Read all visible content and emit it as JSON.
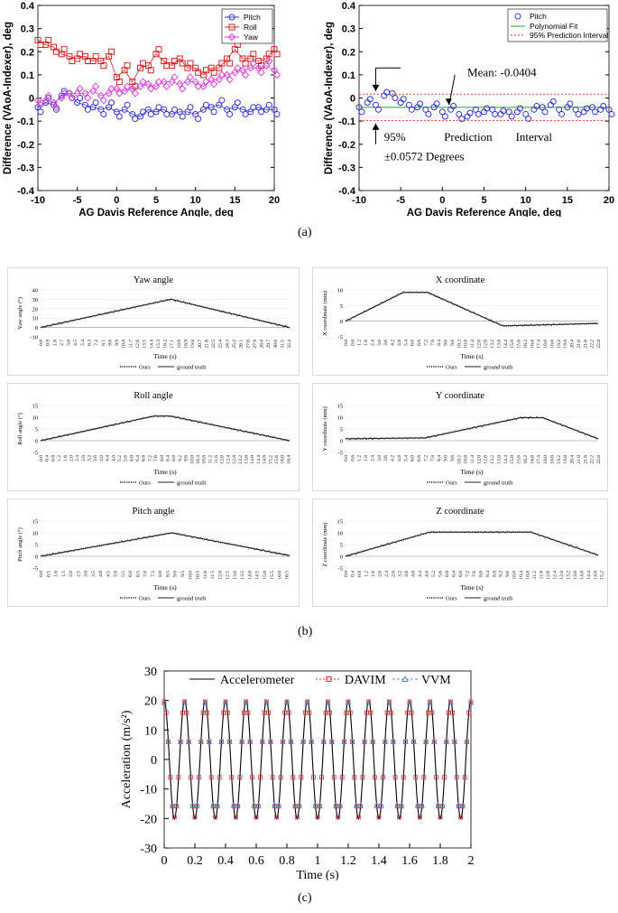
{
  "panels": {
    "a": "(a)",
    "b": "(b)",
    "c": "(c)"
  },
  "colors": {
    "pitch": "#3333dd",
    "roll": "#dd2222",
    "yaw": "#dd44dd",
    "fit": "#22aa22",
    "pred": "#dd2222",
    "series_ours": "#222222",
    "series_gt": "#222222",
    "davim": "#e03030",
    "vvm": "#4a8ad0"
  },
  "chart_data": [
    {
      "id": "a1",
      "type": "line",
      "xlabel": "AG Davis Reference Angle, deg",
      "ylabel": "Difference (VAoA-Indexer), deg",
      "xlim": [
        -10,
        20
      ],
      "ylim": [
        -0.4,
        0.4
      ],
      "xticks": [
        -10,
        -5,
        0,
        5,
        10,
        15,
        20
      ],
      "yticks": [
        -0.4,
        -0.3,
        -0.2,
        -0.1,
        0,
        0.1,
        0.2,
        0.3,
        0.4
      ],
      "ytick_labels": [
        "-0.4",
        "-0.3",
        "-0.2",
        "-0.1",
        "0",
        "0.1",
        "0.2",
        "0.3",
        "0.4"
      ],
      "legend": [
        "Pitch",
        "Roll",
        "Yaw"
      ],
      "legend_position": "top-right",
      "x": [
        -10,
        -9,
        -8,
        -7,
        -6,
        -5,
        -4,
        -3,
        -2,
        -1,
        0,
        1,
        2,
        3,
        4,
        5,
        6,
        7,
        8,
        9,
        10,
        11,
        12,
        13,
        14,
        15,
        16,
        17,
        18,
        19,
        20
      ],
      "series": [
        {
          "name": "Pitch",
          "values": [
            -0.04,
            -0.02,
            -0.03,
            0.01,
            0.02,
            -0.02,
            -0.03,
            -0.04,
            -0.05,
            -0.04,
            -0.06,
            -0.05,
            -0.07,
            -0.08,
            -0.05,
            -0.06,
            -0.05,
            -0.07,
            -0.06,
            -0.06,
            -0.07,
            -0.05,
            -0.04,
            -0.03,
            -0.05,
            -0.04,
            -0.05,
            -0.06,
            -0.04,
            -0.05,
            -0.05
          ]
        },
        {
          "name": "Roll",
          "values": [
            0.25,
            0.23,
            0.22,
            0.19,
            0.18,
            0.17,
            0.18,
            0.16,
            0.16,
            0.18,
            0.09,
            0.12,
            0.07,
            0.13,
            0.14,
            0.19,
            0.16,
            0.14,
            0.17,
            0.13,
            0.13,
            0.1,
            0.13,
            0.13,
            0.17,
            0.21,
            0.17,
            0.17,
            0.16,
            0.17,
            0.21
          ]
        },
        {
          "name": "Yaw",
          "values": [
            -0.01,
            -0.01,
            -0.02,
            0.0,
            0.02,
            0.02,
            0.02,
            0.03,
            0.01,
            0.02,
            0.04,
            0.03,
            0.04,
            0.05,
            0.06,
            0.05,
            0.07,
            0.07,
            0.06,
            0.07,
            0.07,
            0.05,
            0.08,
            0.08,
            0.1,
            0.11,
            0.12,
            0.13,
            0.13,
            0.14,
            0.12
          ]
        }
      ]
    },
    {
      "id": "a2",
      "type": "scatter",
      "xlabel": "AG Davis Reference Angle, deg",
      "ylabel": "Difference (VAoA-Indexer), deg",
      "xlim": [
        -10,
        20
      ],
      "ylim": [
        -0.4,
        0.4
      ],
      "xticks": [
        -10,
        -5,
        0,
        5,
        10,
        15,
        20
      ],
      "yticks": [
        -0.4,
        -0.3,
        -0.2,
        -0.1,
        0,
        0.1,
        0.2,
        0.3,
        0.4
      ],
      "ytick_labels": [
        "-0.4",
        "-0.3",
        "-0.2",
        "-0.1",
        "0",
        "0.1",
        "0.2",
        "0.3",
        "0.4"
      ],
      "legend": [
        "Pitch",
        "Polynomial Fit",
        "95% Prediction Interval"
      ],
      "legend_position": "top-right",
      "mean": -0.0404,
      "interval": 0.0572,
      "annotations": {
        "mean": "Mean: -0.0404",
        "pi_line1_a": "95%",
        "pi_line1_b": "Prediction",
        "pi_line1_c": "Interval",
        "pi_line2": "±0.0572 Degrees"
      },
      "x": [
        -10,
        -9,
        -8,
        -7,
        -6,
        -5,
        -4,
        -3,
        -2,
        -1,
        0,
        1,
        2,
        3,
        4,
        5,
        6,
        7,
        8,
        9,
        10,
        11,
        12,
        13,
        14,
        15,
        16,
        17,
        18,
        19,
        20
      ],
      "values": [
        -0.04,
        -0.02,
        -0.03,
        0.01,
        0.02,
        -0.02,
        -0.03,
        -0.04,
        -0.05,
        -0.04,
        -0.06,
        -0.05,
        -0.07,
        -0.08,
        -0.05,
        -0.06,
        -0.05,
        -0.07,
        -0.06,
        -0.06,
        -0.07,
        -0.05,
        -0.04,
        -0.03,
        -0.05,
        -0.04,
        -0.05,
        -0.06,
        -0.04,
        -0.05,
        -0.05
      ]
    },
    {
      "id": "yaw",
      "type": "line",
      "title": "Yaw angle",
      "ylabel": "Yaw angle (°)",
      "xlabel": "Time (s)",
      "yticks": [
        -10,
        0,
        10,
        20,
        30,
        40
      ],
      "ylim": [
        -10,
        40
      ],
      "xmax": 32.5,
      "tickstep": 0.9,
      "shape": [
        [
          0,
          0
        ],
        [
          17.0,
          30
        ],
        [
          32.5,
          0
        ]
      ],
      "legend": [
        "Ours",
        "ground truth"
      ]
    },
    {
      "id": "x",
      "type": "line",
      "title": "X coordinate",
      "ylabel": "X coordinate (mm)",
      "xlabel": "Time (s)",
      "yticks": [
        -5,
        0,
        5,
        10
      ],
      "ylim": [
        -5,
        10
      ],
      "xmax": 22.8,
      "tickstep": 0.6,
      "shape": [
        [
          0,
          0
        ],
        [
          5.2,
          9.2
        ],
        [
          7.4,
          9.2
        ],
        [
          14.2,
          -1.5
        ],
        [
          22.8,
          -0.7
        ]
      ],
      "legend": [
        "Ours",
        "ground truth"
      ]
    },
    {
      "id": "roll",
      "type": "line",
      "title": "Roll angle",
      "ylabel": "Roll angle (°)",
      "xlabel": "Time (s)",
      "yticks": [
        -5,
        0,
        5,
        10,
        15
      ],
      "ylim": [
        -5,
        15
      ],
      "xmax": 16.5,
      "tickstep": 0.4,
      "shape": [
        [
          0,
          0
        ],
        [
          7.5,
          10.5
        ],
        [
          8.6,
          10.5
        ],
        [
          16.5,
          0
        ]
      ],
      "legend": [
        "Ours",
        "ground truth"
      ]
    },
    {
      "id": "y",
      "type": "line",
      "title": "Y coordinate",
      "ylabel": "Y coordinate (mm)",
      "xlabel": "Time (s)",
      "yticks": [
        -5,
        0,
        5,
        10,
        15
      ],
      "ylim": [
        -5,
        15
      ],
      "xmax": 22.8,
      "tickstep": 0.6,
      "shape": [
        [
          0,
          0.8
        ],
        [
          7.2,
          1.2
        ],
        [
          15.8,
          9.8
        ],
        [
          17.8,
          9.8
        ],
        [
          22.8,
          0.8
        ]
      ],
      "legend": [
        "Ours",
        "ground truth"
      ]
    },
    {
      "id": "pitch",
      "type": "line",
      "title": "Pitch angle",
      "ylabel": "Pitch angle (°)",
      "xlabel": "Time (s)",
      "yticks": [
        -5,
        0,
        5,
        10,
        15
      ],
      "ylim": [
        -5,
        15
      ],
      "xmax": 16.7,
      "tickstep": 0.5,
      "shape": [
        [
          0,
          0
        ],
        [
          8.8,
          10
        ],
        [
          16.7,
          0.3
        ]
      ],
      "legend": [
        "Ours",
        "ground truth"
      ]
    },
    {
      "id": "z",
      "type": "line",
      "title": "Z coordinate",
      "ylabel": "Z coordinate (mm)",
      "xlabel": "Time (s)",
      "yticks": [
        -5,
        0,
        5,
        10,
        15
      ],
      "ylim": [
        -5,
        15
      ],
      "xmax": 15.0,
      "tickstep": 0.4,
      "shape": [
        [
          0,
          0
        ],
        [
          5.0,
          10.3
        ],
        [
          11.0,
          10.3
        ],
        [
          15.0,
          0.5
        ]
      ],
      "legend": [
        "Ours",
        "ground truth"
      ]
    },
    {
      "id": "c",
      "type": "line",
      "ylabel": "Acceleration (m/s²)",
      "xlabel": "Time (s)",
      "xlim": [
        0,
        2
      ],
      "ylim": [
        -30,
        30
      ],
      "xticks": [
        0,
        0.2,
        0.4,
        0.6,
        0.8,
        1,
        1.2,
        1.4,
        1.6,
        1.8,
        2
      ],
      "xtick_labels": [
        "0",
        "0.2",
        "0.4",
        "0.6",
        "0.8",
        "1",
        "1.2",
        "1.4",
        "1.6",
        "1.8",
        "2"
      ],
      "yticks": [
        -30,
        -20,
        -10,
        0,
        10,
        20,
        30
      ],
      "amplitude": 20,
      "frequency": 7.5,
      "legend": [
        "Accelerometer",
        "DAVIM",
        "VVM"
      ]
    }
  ]
}
